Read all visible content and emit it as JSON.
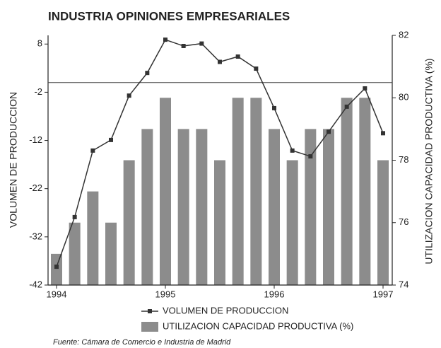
{
  "chart_data": {
    "type": "bar-line",
    "title": "INDUSTRIA OPINIONES EMPRESARIALES",
    "ylabel": "VOLUMEN DE PRODUCCION",
    "y2label": "UTILIZACION CAPACIDAD PRODUCTIVA (%)",
    "source": "Fuente: Cámara de Comercio e Industria de Madrid",
    "categories": [
      "1994",
      null,
      null,
      null,
      null,
      null,
      "1995",
      null,
      null,
      null,
      null,
      null,
      "1996",
      null,
      null,
      null,
      null,
      null,
      "1997"
    ],
    "series": [
      {
        "name": "VOLUMEN DE PRODUCCION",
        "type": "line",
        "color": "#333333",
        "axis": "y",
        "values": [
          -38.2,
          -27.9,
          -14.1,
          -11.9,
          -2.7,
          2,
          8.9,
          7.6,
          8.1,
          4.3,
          5.4,
          2.9,
          -5.3,
          -14.1,
          -15.3,
          -10.2,
          -5,
          -1.2,
          -10.5
        ]
      },
      {
        "name": "UTILIZACION CAPACIDAD PRODUCTIVA (%)",
        "type": "bar",
        "color": "#8c8c8c",
        "axis": "y2",
        "values": [
          75,
          76,
          77,
          76,
          78,
          79,
          80,
          79,
          79,
          78,
          80,
          80,
          79,
          78,
          79,
          79,
          80,
          80,
          78
        ]
      }
    ],
    "ylim": [
      -42,
      9.8
    ],
    "yticks": [
      -42,
      -32,
      -22,
      -12,
      -2,
      8
    ],
    "y2lim": [
      74,
      82
    ],
    "y2ticks": [
      74,
      76,
      78,
      80,
      82
    ],
    "zero_line": true
  }
}
